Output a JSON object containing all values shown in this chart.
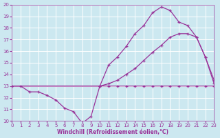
{
  "xlabel": "Windchill (Refroidissement éolien,°C)",
  "bg_color": "#cce8f0",
  "line_color": "#993399",
  "grid_color": "#ffffff",
  "xmin": 0,
  "xmax": 23,
  "ymin": 10,
  "ymax": 20,
  "line1_x": [
    0,
    1,
    2,
    3,
    4,
    5,
    6,
    7,
    8,
    9,
    10,
    11,
    12,
    13,
    14,
    15,
    16,
    17,
    18,
    19,
    20,
    21,
    22,
    23
  ],
  "line1_y": [
    13.0,
    13.0,
    12.5,
    12.5,
    12.2,
    11.8,
    11.1,
    10.8,
    9.8,
    10.4,
    13.0,
    13.0,
    13.0,
    13.0,
    13.0,
    13.0,
    13.0,
    13.0,
    13.0,
    13.0,
    13.0,
    13.0,
    13.0,
    13.0
  ],
  "line2_x": [
    0,
    10,
    11,
    12,
    13,
    14,
    15,
    16,
    17,
    18,
    19,
    20,
    21,
    22,
    23
  ],
  "line2_y": [
    13.0,
    13.0,
    14.8,
    15.5,
    16.4,
    17.5,
    18.2,
    19.3,
    19.8,
    19.5,
    18.5,
    18.2,
    17.2,
    15.5,
    13.5
  ],
  "line3_x": [
    0,
    10,
    11,
    12,
    13,
    14,
    15,
    16,
    17,
    18,
    19,
    20,
    21,
    22,
    23
  ],
  "line3_y": [
    13.0,
    13.0,
    13.2,
    13.5,
    14.0,
    14.5,
    15.2,
    15.9,
    16.5,
    17.2,
    17.5,
    17.5,
    17.2,
    15.5,
    13.2
  ],
  "yticks": [
    10,
    11,
    12,
    13,
    14,
    15,
    16,
    17,
    18,
    19,
    20
  ],
  "xticks": [
    0,
    1,
    2,
    3,
    4,
    5,
    6,
    7,
    8,
    9,
    10,
    11,
    12,
    13,
    14,
    15,
    16,
    17,
    18,
    19,
    20,
    21,
    22,
    23
  ]
}
